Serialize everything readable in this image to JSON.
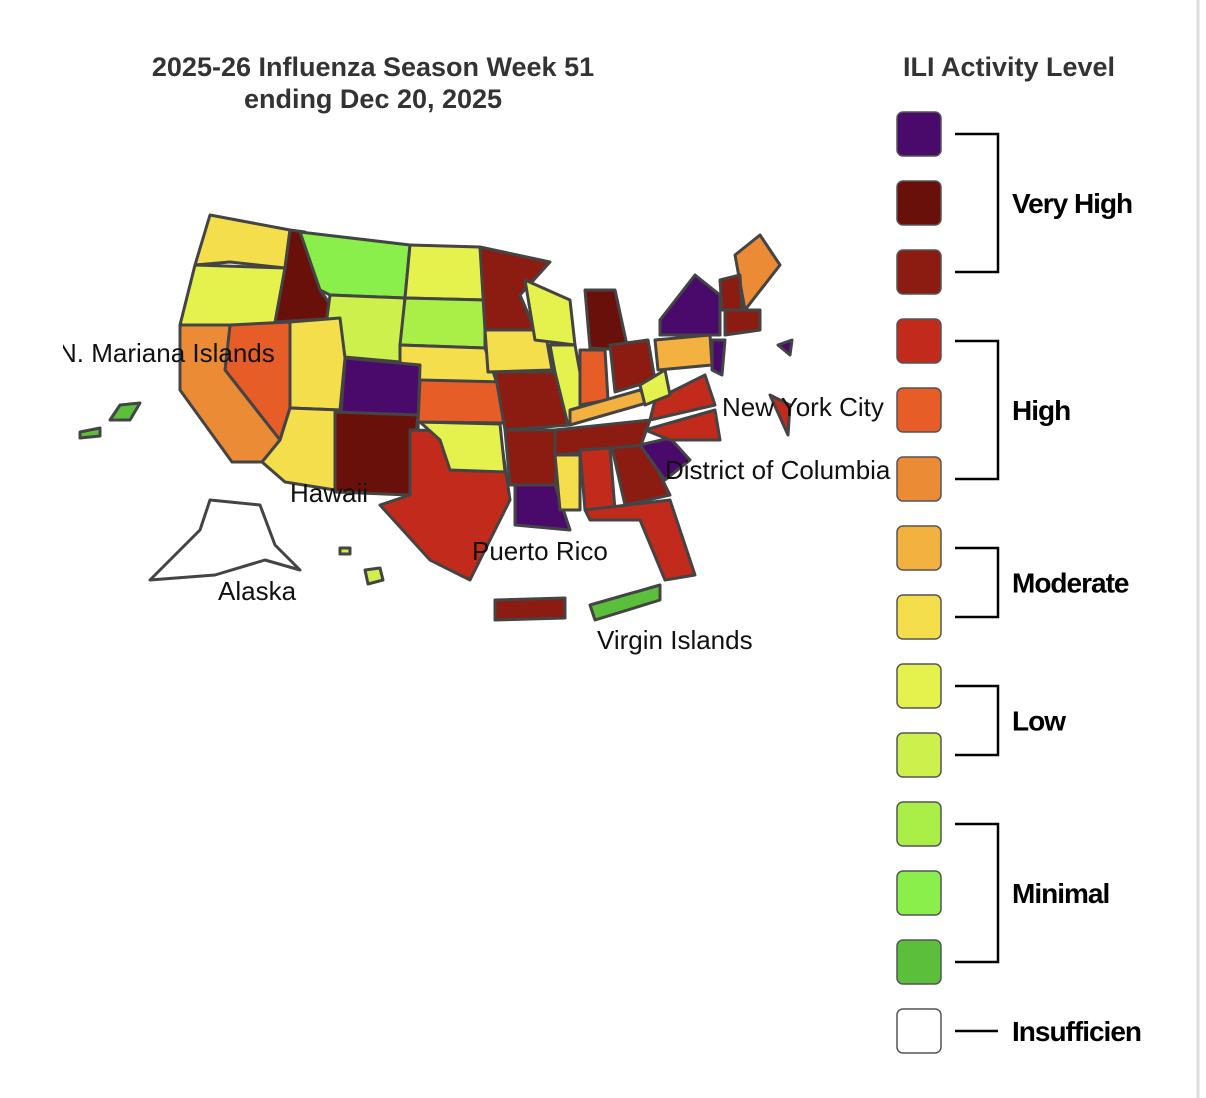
{
  "title": [
    "2025-26 Influenza Season Week 51",
    "ending Dec 20, 2025"
  ],
  "map_labels": [
    "N. Mariana Islands",
    "Hawaii",
    "Alaska",
    "Puerto Rico",
    "Virgin Islands",
    "New York City",
    "District of Columbia"
  ],
  "legend": {
    "title": "ILI Activity Level",
    "swatches": [
      "#4a0a6b",
      "#6a100b",
      "#8c1b12",
      "#c22a1c",
      "#e65d27",
      "#ec8b36",
      "#f3b13f",
      "#f5de4b",
      "#e5f24e",
      "#cdf04c",
      "#aaef48",
      "#8aef4b",
      "#5bbf3b",
      "#ffffff"
    ],
    "groups": [
      {
        "label": "Very High",
        "count": 3
      },
      {
        "label": "High",
        "count": 3
      },
      {
        "label": "Moderate",
        "count": 2
      },
      {
        "label": "Low",
        "count": 2
      },
      {
        "label": "Minimal",
        "count": 3
      },
      {
        "label": "Insufficien",
        "count": 1
      }
    ]
  }
}
